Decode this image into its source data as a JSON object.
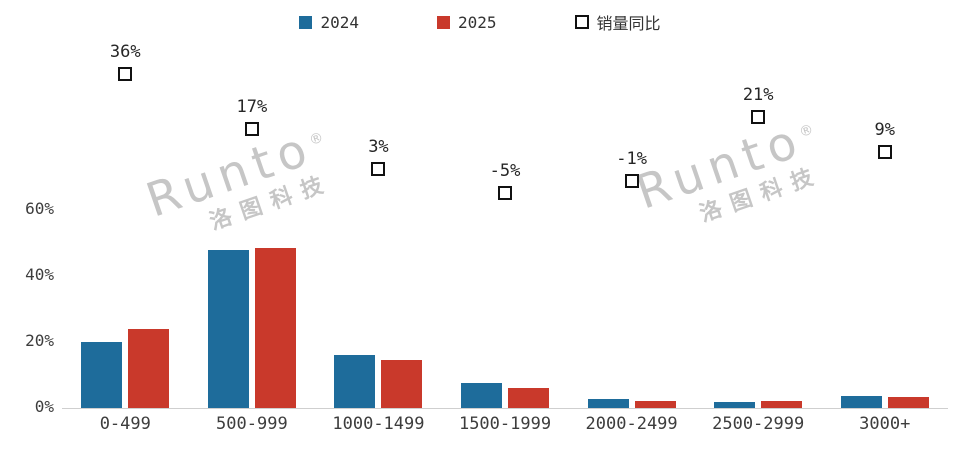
{
  "legend": {
    "items": [
      {
        "label": "2024",
        "color": "#1E6C9B",
        "swatch": "filled"
      },
      {
        "label": "2025",
        "color": "#C9392B",
        "swatch": "filled"
      },
      {
        "label": "销量同比",
        "color": "#111111",
        "swatch": "hollow"
      }
    ]
  },
  "watermark": {
    "en": "Runto",
    "reg": "®",
    "cn": "洛图科技"
  },
  "chart_data": {
    "type": "bar",
    "title": "",
    "categories": [
      "0-499",
      "500-999",
      "1000-1499",
      "1500-1999",
      "2000-2499",
      "2500-2999",
      "3000+"
    ],
    "series": [
      {
        "name": "2024",
        "color": "#1E6C9B",
        "values": [
          20,
          48,
          16,
          7.5,
          2.7,
          1.8,
          3.6
        ]
      },
      {
        "name": "2025",
        "color": "#C9392B",
        "values": [
          24,
          48.5,
          14.5,
          6.2,
          2.1,
          2.0,
          3.4
        ]
      }
    ],
    "markers": {
      "name": "销量同比",
      "values": [
        36,
        17,
        3,
        -5,
        -1,
        21,
        9
      ],
      "labels": [
        "36%",
        "17%",
        "3%",
        "-5%",
        "-1%",
        "21%",
        "9%"
      ]
    },
    "y_axis": {
      "ticks": [
        "0%",
        "20%",
        "40%",
        "60%"
      ],
      "tick_values": [
        0,
        20,
        40,
        60
      ],
      "range": [
        0,
        80
      ]
    },
    "grid": false,
    "legend_position": "top"
  }
}
